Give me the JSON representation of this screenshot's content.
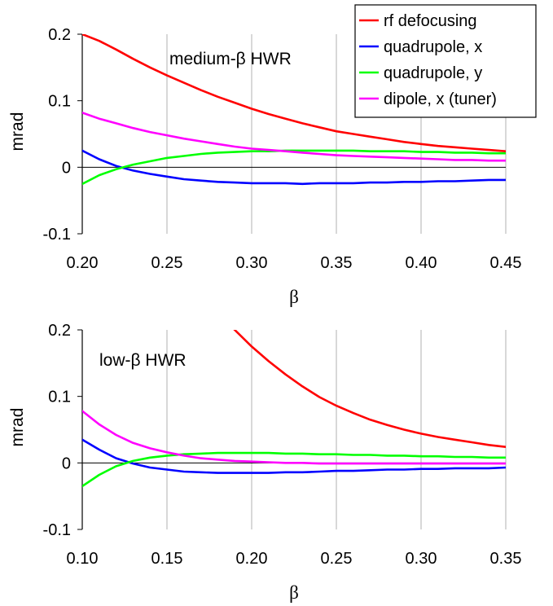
{
  "legend": {
    "placement": "top-right",
    "entries": [
      {
        "label": "rf defocusing",
        "color": "#ff0000"
      },
      {
        "label": "quadrupole, x",
        "color": "#0000ff"
      },
      {
        "label": "quadrupole, y",
        "color": "#00ff00"
      },
      {
        "label": "dipole, x (tuner)",
        "color": "#ff00ff"
      }
    ]
  },
  "chart_data": [
    {
      "type": "line",
      "annotation": "medium-β HWR",
      "xlabel": "β",
      "ylabel": "mrad",
      "xlim": [
        0.2,
        0.45
      ],
      "ylim": [
        -0.1,
        0.2
      ],
      "xticks": [
        "0.20",
        "0.25",
        "0.30",
        "0.35",
        "0.40",
        "0.45"
      ],
      "xtick_values": [
        0.2,
        0.25,
        0.3,
        0.35,
        0.4,
        0.45
      ],
      "yticks": [
        "-0.1",
        "0",
        "0.1",
        "0.2"
      ],
      "ytick_values": [
        -0.1,
        0,
        0.1,
        0.2
      ],
      "grid": "vertical",
      "x": [
        0.2,
        0.21,
        0.22,
        0.23,
        0.24,
        0.25,
        0.26,
        0.27,
        0.28,
        0.29,
        0.3,
        0.31,
        0.32,
        0.33,
        0.34,
        0.35,
        0.36,
        0.37,
        0.38,
        0.39,
        0.4,
        0.41,
        0.42,
        0.43,
        0.44,
        0.45
      ],
      "series": [
        {
          "name": "rf defocusing",
          "color": "#ff0000",
          "values": [
            0.2,
            0.19,
            0.177,
            0.163,
            0.15,
            0.138,
            0.127,
            0.116,
            0.106,
            0.097,
            0.088,
            0.08,
            0.073,
            0.066,
            0.06,
            0.054,
            0.05,
            0.046,
            0.042,
            0.038,
            0.035,
            0.032,
            0.03,
            0.028,
            0.026,
            0.024
          ]
        },
        {
          "name": "quadrupole, x",
          "color": "#0000ff",
          "values": [
            0.025,
            0.012,
            0.002,
            -0.005,
            -0.01,
            -0.014,
            -0.018,
            -0.02,
            -0.022,
            -0.023,
            -0.024,
            -0.024,
            -0.024,
            -0.025,
            -0.024,
            -0.024,
            -0.024,
            -0.023,
            -0.023,
            -0.022,
            -0.022,
            -0.021,
            -0.021,
            -0.02,
            -0.019,
            -0.019
          ]
        },
        {
          "name": "quadrupole, y",
          "color": "#00ff00",
          "values": [
            -0.025,
            -0.012,
            -0.003,
            0.004,
            0.009,
            0.014,
            0.017,
            0.02,
            0.022,
            0.023,
            0.024,
            0.024,
            0.025,
            0.025,
            0.025,
            0.025,
            0.025,
            0.024,
            0.024,
            0.024,
            0.023,
            0.023,
            0.022,
            0.022,
            0.021,
            0.021
          ]
        },
        {
          "name": "dipole, x (tuner)",
          "color": "#ff00ff",
          "values": [
            0.082,
            0.073,
            0.066,
            0.059,
            0.053,
            0.048,
            0.043,
            0.039,
            0.035,
            0.031,
            0.028,
            0.026,
            0.024,
            0.022,
            0.02,
            0.018,
            0.017,
            0.016,
            0.015,
            0.014,
            0.013,
            0.012,
            0.011,
            0.011,
            0.01,
            0.01
          ]
        }
      ]
    },
    {
      "type": "line",
      "annotation": "low-β HWR",
      "xlabel": "β",
      "ylabel": "mrad",
      "xlim": [
        0.1,
        0.35
      ],
      "ylim": [
        -0.1,
        0.2
      ],
      "xticks": [
        "0.10",
        "0.15",
        "0.20",
        "0.25",
        "0.30",
        "0.35"
      ],
      "xtick_values": [
        0.1,
        0.15,
        0.2,
        0.25,
        0.3,
        0.35
      ],
      "yticks": [
        "-0.1",
        "0",
        "0.1",
        "0.2"
      ],
      "ytick_values": [
        -0.1,
        0,
        0.1,
        0.2
      ],
      "grid": "vertical",
      "x": [
        0.1,
        0.11,
        0.12,
        0.13,
        0.14,
        0.15,
        0.16,
        0.17,
        0.18,
        0.19,
        0.2,
        0.21,
        0.22,
        0.23,
        0.24,
        0.25,
        0.26,
        0.27,
        0.28,
        0.29,
        0.3,
        0.31,
        0.32,
        0.33,
        0.34,
        0.35
      ],
      "series": [
        {
          "name": "rf defocusing",
          "color": "#ff0000",
          "values": [
            null,
            null,
            null,
            null,
            null,
            null,
            null,
            null,
            null,
            0.2,
            0.175,
            0.153,
            0.133,
            0.115,
            0.099,
            0.086,
            0.075,
            0.065,
            0.057,
            0.05,
            0.044,
            0.039,
            0.035,
            0.031,
            0.027,
            0.024
          ]
        },
        {
          "name": "quadrupole, x",
          "color": "#0000ff",
          "values": [
            0.035,
            0.02,
            0.007,
            -0.001,
            -0.007,
            -0.01,
            -0.013,
            -0.014,
            -0.015,
            -0.015,
            -0.015,
            -0.015,
            -0.014,
            -0.014,
            -0.013,
            -0.012,
            -0.012,
            -0.011,
            -0.01,
            -0.01,
            -0.009,
            -0.009,
            -0.008,
            -0.008,
            -0.008,
            -0.007
          ]
        },
        {
          "name": "quadrupole, y",
          "color": "#00ff00",
          "values": [
            -0.035,
            -0.018,
            -0.005,
            0.003,
            0.008,
            0.011,
            0.013,
            0.014,
            0.015,
            0.015,
            0.015,
            0.015,
            0.014,
            0.014,
            0.013,
            0.013,
            0.012,
            0.012,
            0.011,
            0.011,
            0.01,
            0.01,
            0.009,
            0.009,
            0.008,
            0.008
          ]
        },
        {
          "name": "dipole, x (tuner)",
          "color": "#ff00ff",
          "values": [
            0.078,
            0.058,
            0.042,
            0.03,
            0.022,
            0.016,
            0.011,
            0.007,
            0.005,
            0.003,
            0.002,
            0.001,
            0.0,
            0.0,
            -0.001,
            -0.001,
            -0.001,
            -0.001,
            -0.001,
            -0.001,
            -0.001,
            -0.001,
            -0.001,
            -0.001,
            -0.001,
            -0.001
          ]
        }
      ]
    }
  ]
}
